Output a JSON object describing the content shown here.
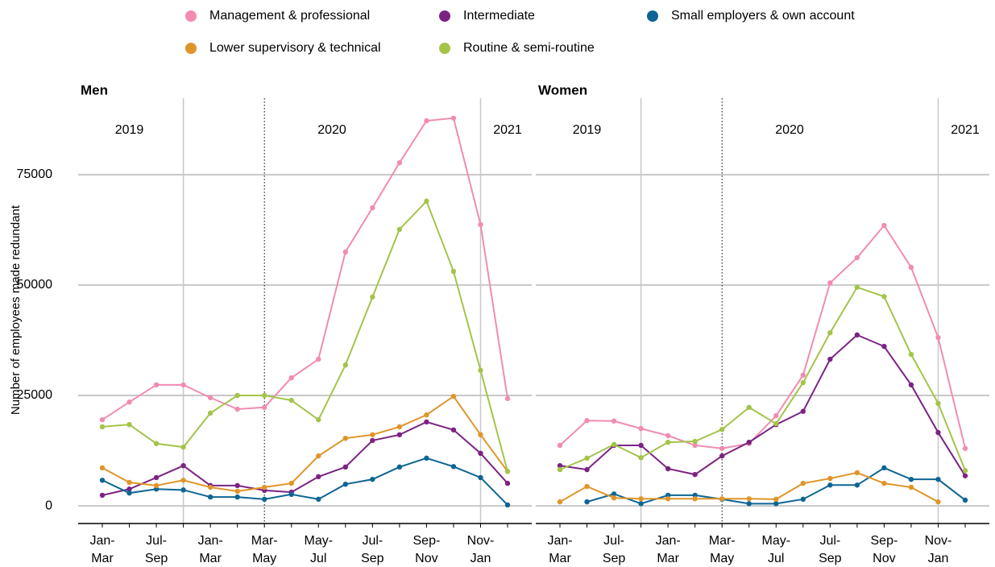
{
  "chart_data": [
    {
      "type": "line",
      "title": "Men",
      "y_label": "Number of employees made redundant",
      "categories": [
        "Jan-\nMar",
        null,
        "Jul-\nSep",
        null,
        "Jan-\nMar",
        null,
        "Mar-\nMay",
        null,
        "May-\nJul",
        null,
        "Jul-\nSep",
        null,
        "Sep-\nNov",
        null,
        "Nov-\nJan",
        null
      ],
      "years": [
        "2019",
        "2020",
        "2021"
      ],
      "year_breaks": [
        3,
        14
      ],
      "marker_line": 6,
      "ylim": [
        -4000,
        92300
      ],
      "yticks": [
        0,
        25000,
        50000,
        75000
      ],
      "show_ytick_labels": true,
      "grid": true,
      "series": [
        {
          "name": "Management & professional",
          "color": "#f28bb3",
          "values": [
            19500,
            23500,
            27400,
            27400,
            24500,
            21900,
            22300,
            29000,
            33200,
            57500,
            67500,
            77700,
            87200,
            87800,
            63700,
            24300
          ]
        },
        {
          "name": "Intermediate",
          "color": "#7b2383",
          "values": [
            2400,
            3800,
            6400,
            9100,
            4600,
            4600,
            3500,
            3100,
            6600,
            8800,
            14800,
            16100,
            19000,
            17200,
            11900,
            5100
          ]
        },
        {
          "name": "Small employers & own account",
          "color": "#0e6593",
          "values": [
            5800,
            2900,
            3800,
            3600,
            2000,
            2000,
            1500,
            2600,
            1500,
            4900,
            6000,
            8800,
            10800,
            8900,
            6400,
            200
          ]
        },
        {
          "name": "Lower supervisory & technical",
          "color": "#e0952a",
          "values": [
            8600,
            5300,
            4600,
            5800,
            4200,
            3300,
            4200,
            5100,
            11300,
            15300,
            16100,
            17900,
            20600,
            24800,
            16100,
            7800
          ]
        },
        {
          "name": "Routine & semi-routine",
          "color": "#a3c44a",
          "values": [
            17900,
            18400,
            14100,
            13300,
            21000,
            25000,
            25000,
            23900,
            19500,
            31900,
            47300,
            62600,
            69000,
            53100,
            30700,
            7800
          ]
        }
      ]
    },
    {
      "type": "line",
      "title": "Women",
      "categories": [
        "Jan-\nMar",
        null,
        "Jul-\nSep",
        null,
        "Jan-\nMar",
        null,
        "Mar-\nMay",
        null,
        "May-\nJul",
        null,
        "Jul-\nSep",
        null,
        "Sep-\nNov",
        null,
        "Nov-\nJan",
        null
      ],
      "years": [
        "2019",
        "2020",
        "2021"
      ],
      "year_breaks": [
        3,
        14
      ],
      "marker_line": 6,
      "ylim": [
        -4000,
        92300
      ],
      "yticks": [
        0,
        25000,
        50000,
        75000
      ],
      "show_ytick_labels": false,
      "grid": true,
      "series": [
        {
          "name": "Management & professional",
          "color": "#f28bb3",
          "values": [
            13700,
            19300,
            19200,
            17500,
            15900,
            13700,
            13000,
            14100,
            20400,
            29600,
            50500,
            56200,
            63500,
            54000,
            38100,
            13000
          ]
        },
        {
          "name": "Intermediate",
          "color": "#7b2383",
          "values": [
            9100,
            8200,
            13700,
            13700,
            8400,
            7100,
            11300,
            14400,
            18400,
            21400,
            33200,
            38700,
            36100,
            27400,
            16600,
            6800
          ]
        },
        {
          "name": "Small employers & own account",
          "color": "#0e6593",
          "values": [
            null,
            900,
            2700,
            500,
            2400,
            2400,
            1500,
            500,
            500,
            1500,
            4700,
            4700,
            8600,
            6000,
            6000,
            1300
          ]
        },
        {
          "name": "Lower supervisory & technical",
          "color": "#e0952a",
          "values": [
            900,
            4400,
            1800,
            1600,
            1600,
            1600,
            1600,
            1600,
            1500,
            5100,
            6200,
            7500,
            5100,
            4200,
            900,
            null
          ]
        },
        {
          "name": "Routine & semi-routine",
          "color": "#a3c44a",
          "values": [
            8200,
            10800,
            13900,
            10900,
            14400,
            14600,
            17300,
            22300,
            18600,
            27900,
            39200,
            49500,
            47400,
            34300,
            23200,
            8000
          ]
        }
      ]
    }
  ]
}
